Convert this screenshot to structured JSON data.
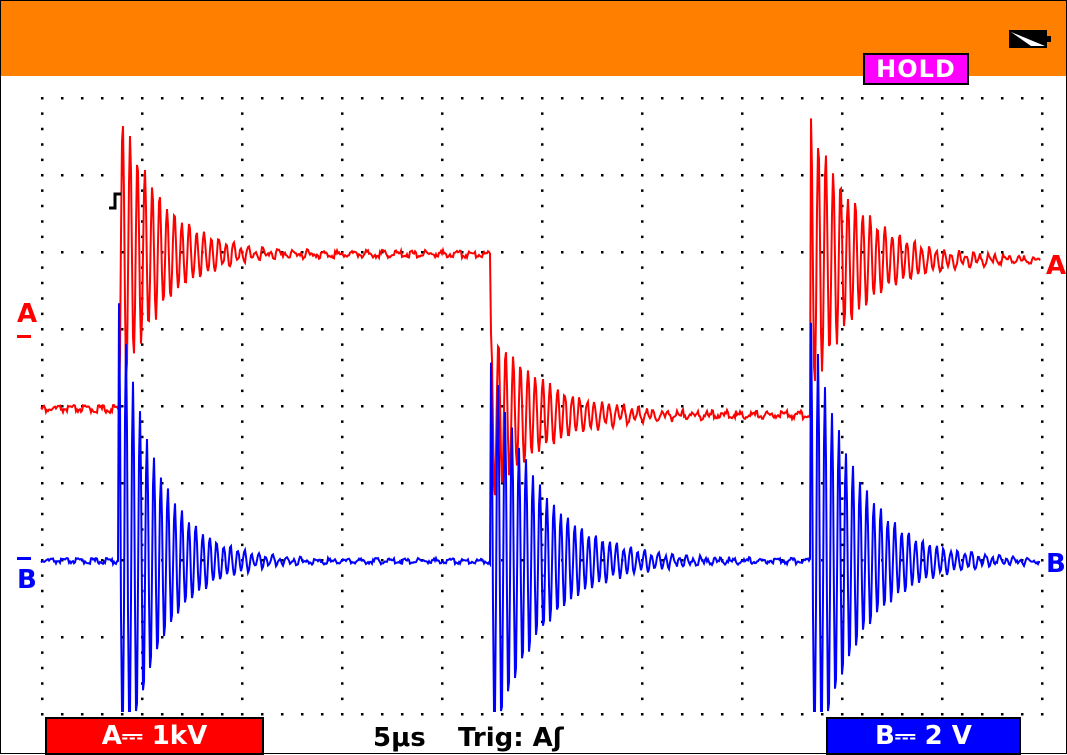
{
  "status": {
    "hold_label": "HOLD",
    "battery_icon": "battery-icon"
  },
  "channels": {
    "a": {
      "marker": "A",
      "ground_marker": "A",
      "readout": "A⎓ 1kV",
      "color": "#ff0000"
    },
    "b": {
      "marker": "B",
      "ground_marker": "B",
      "readout": "B⎓ 2 V",
      "color": "#0000ff"
    }
  },
  "timebase": {
    "label": "5μs"
  },
  "trigger": {
    "label": "Trig: Aʃ"
  },
  "colors": {
    "header": "#ff7f00",
    "grid": "#000000",
    "trace_a": "#ff0000",
    "trace_b": "#0000ff",
    "hold": "#ff00ff"
  }
}
